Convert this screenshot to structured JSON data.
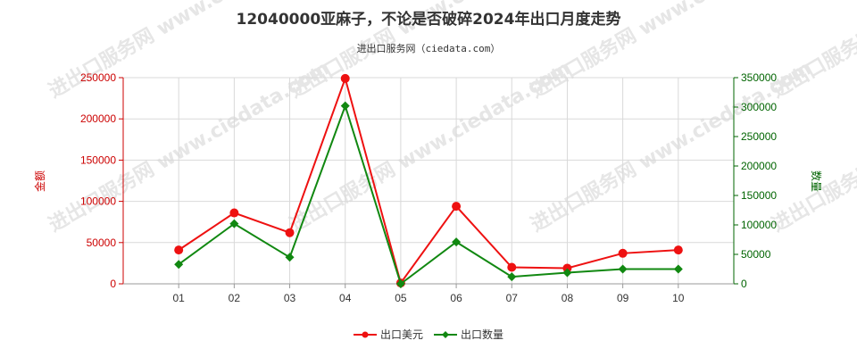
{
  "chart_data": {
    "type": "line",
    "title": "12040000亚麻子，不论是否破碎2024年出口月度走势",
    "subtitle": "进出口服务网（ciedata.com）",
    "categories": [
      "01",
      "02",
      "03",
      "04",
      "05",
      "06",
      "07",
      "08",
      "09",
      "10"
    ],
    "y_left": {
      "label": "金额",
      "range": [
        0,
        250000
      ],
      "ticks": [
        0,
        50000,
        100000,
        150000,
        200000,
        250000
      ]
    },
    "y_right": {
      "label": "数量",
      "range": [
        0,
        350000
      ],
      "ticks": [
        0,
        50000,
        100000,
        150000,
        200000,
        250000,
        300000,
        350000
      ]
    },
    "series": [
      {
        "name": "出口美元",
        "axis": "left",
        "color": "#ee1111",
        "marker": "circle",
        "values": [
          41000,
          86000,
          62000,
          249000,
          1000,
          94000,
          20000,
          19000,
          37000,
          41000
        ]
      },
      {
        "name": "出口数量",
        "axis": "right",
        "color": "#118811",
        "marker": "diamond",
        "values": [
          33000,
          102000,
          45000,
          302000,
          0,
          71000,
          12000,
          19000,
          25000,
          25000
        ]
      }
    ],
    "grid": true,
    "legend_position": "bottom-center",
    "watermark": "进出口服务网 www.ciedata.com"
  }
}
